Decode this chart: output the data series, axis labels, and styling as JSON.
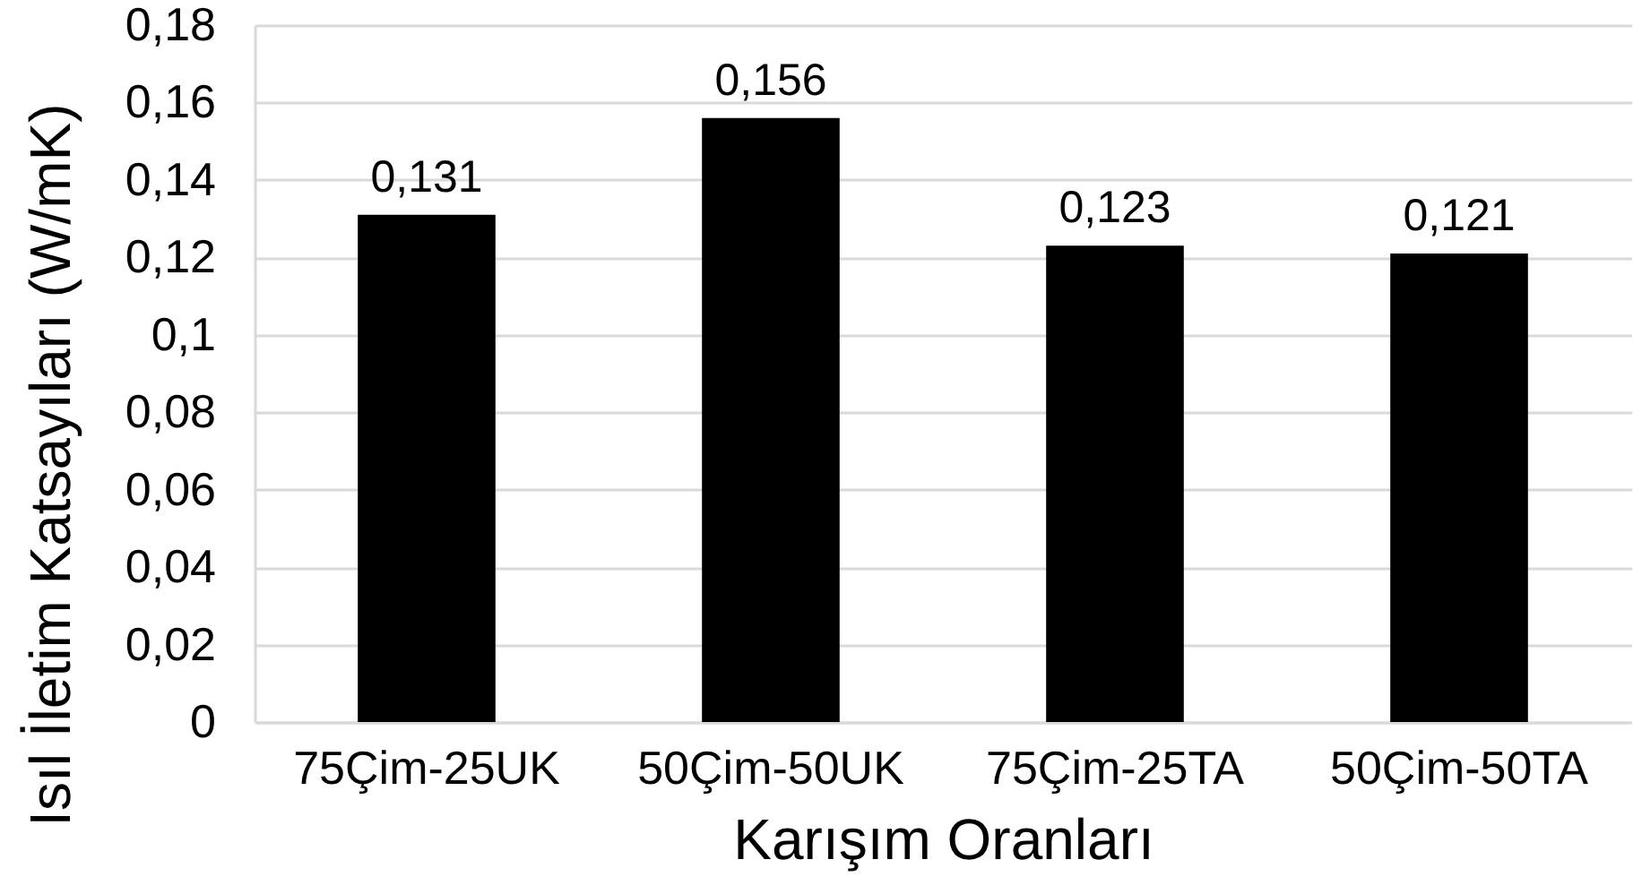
{
  "chart_data": {
    "type": "bar",
    "xlabel": "Karışım Oranları",
    "ylabel": "Isıl İletim Katsayıları (W/mK)",
    "categories": [
      "75Çim-25UK",
      "50Çim-50UK",
      "75Çim-25TA",
      "50Çim-50TA"
    ],
    "values": [
      0.131,
      0.156,
      0.123,
      0.121
    ],
    "color": "#000000",
    "value_labels": [
      "0,131",
      "0,156",
      "0,123",
      "0,121"
    ],
    "ylim": [
      0,
      0.18
    ],
    "yticks": [
      0,
      {
        "value": 0.02,
        "label": "0,02"
      },
      {
        "value": 0.04,
        "label": "0,04"
      },
      {
        "value": 0.06,
        "label": "0,06"
      },
      {
        "value": 0.08,
        "label": "0,08"
      },
      {
        "value": 0.1,
        "label": "0,1"
      },
      {
        "value": 0.12,
        "label": "0,12"
      },
      {
        "value": 0.14,
        "label": "0,14"
      },
      {
        "value": 0.16,
        "label": "0,16"
      },
      {
        "value": 0.18,
        "label": "0,18"
      }
    ],
    "grid": "y"
  }
}
